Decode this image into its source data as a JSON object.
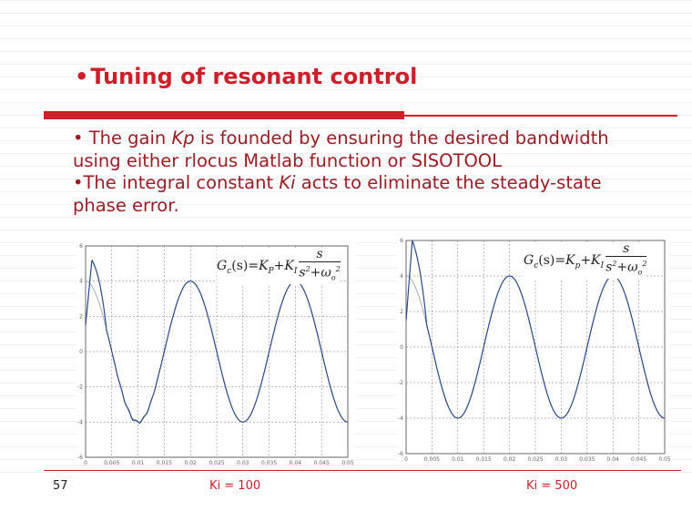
{
  "slide": {
    "title_bullet": "•",
    "title": "Tuning of resonant control",
    "bullets": [
      {
        "bullet": "•",
        "prefix": " The gain ",
        "emph": "Kp",
        "suffix": " is founded by ensuring the desired bandwidth using either rlocus Matlab function or SISOTOOL"
      },
      {
        "bullet": "•",
        "prefix": "The integral constant ",
        "emph": "Ki",
        "suffix": " acts to eliminate the steady-state phase error."
      }
    ],
    "page_number": "57"
  },
  "formulas": [
    {
      "lhs": "G",
      "sub_c": "c",
      "args": "(s)",
      "eq": "=",
      "kp": "K",
      "sub_p": "P",
      "plus": "+",
      "ki": "K",
      "sub_i": "I",
      "numerator": "s",
      "denominator": "s",
      "den_sup": "2",
      "den_rest": "+ω",
      "den_sub": "o",
      "den_sup2": "2"
    },
    {
      "lhs": "G",
      "sub_c": "c",
      "args": "(s)",
      "eq": "=",
      "kp": "K",
      "sub_p": "p",
      "plus": "+",
      "ki": "K",
      "sub_i": "I",
      "numerator": "s",
      "denominator": "s",
      "den_sup": "2",
      "den_rest": "+ω",
      "den_sub": "o",
      "den_sup2": "2"
    }
  ],
  "captions": [
    "Ki = 100",
    "Ki = 500"
  ],
  "colors": {
    "accent": "#cc1f2a",
    "trace": "#2a4a8a",
    "reference": "#999999"
  },
  "chart_data": [
    {
      "type": "line",
      "title": "",
      "xlabel": "",
      "ylabel": "",
      "xlim": [
        0,
        0.05
      ],
      "ylim": [
        -6,
        6
      ],
      "xticks": [
        "0",
        "0.005",
        "0.01",
        "0.015",
        "0.02",
        "0.025",
        "0.03",
        "0.035",
        "0.04",
        "0.045",
        "0.05"
      ],
      "yticks": [
        "-6",
        "-4",
        "-2",
        "0",
        "2",
        "4",
        "6"
      ],
      "grid": true,
      "reference": {
        "amplitude": 4,
        "frequency_hz": 50
      },
      "response": {
        "amplitude": 4,
        "frequency_hz": 50,
        "peak_start": 5.2,
        "settle_time": 0.02
      }
    },
    {
      "type": "line",
      "title": "",
      "xlabel": "",
      "ylabel": "",
      "xlim": [
        0,
        0.05
      ],
      "ylim": [
        -6,
        6
      ],
      "xticks": [
        "0",
        "0.005",
        "0.01",
        "0.015",
        "0.02",
        "0.025",
        "0.03",
        "0.035",
        "0.04",
        "0.045",
        "0.05"
      ],
      "yticks": [
        "-6",
        "-4",
        "-2",
        "0",
        "2",
        "4",
        "6"
      ],
      "grid": true,
      "reference": {
        "amplitude": 4,
        "frequency_hz": 50
      },
      "response": {
        "amplitude": 4,
        "frequency_hz": 50,
        "peak_start": 6.0,
        "settle_time": 0.007
      }
    }
  ]
}
